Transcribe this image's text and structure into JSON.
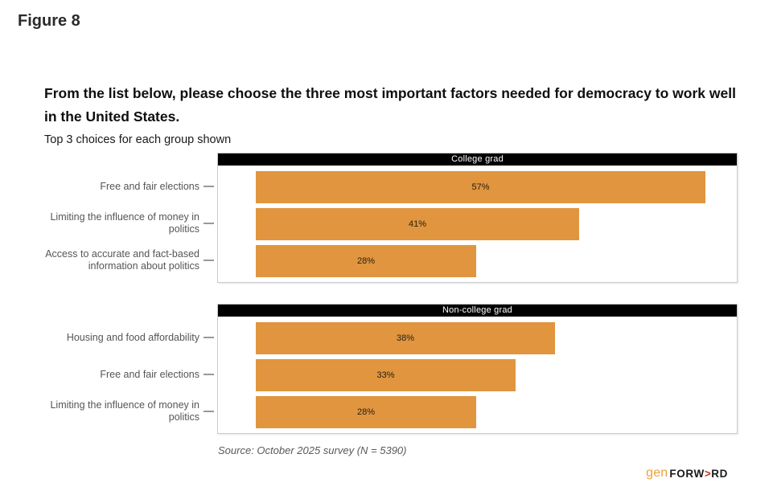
{
  "figure_label": "Figure 8",
  "title": "From the list below, please choose the three most important factors needed for democracy to work well in the United States.",
  "subtitle": "Top 3 choices for each group shown",
  "source_note": "Source: October 2025 survey (N = 5390)",
  "logo": {
    "gen": "gen",
    "forw": "FORW",
    "arrow": ">",
    "rd": "RD"
  },
  "colors": {
    "bar": "#E0953E",
    "panel_header_bg": "#000000",
    "panel_header_text": "#ffffff",
    "panel_border": "#cccccc",
    "tick": "#999999",
    "category_label": "#555555",
    "logo_gen": "#E8A23B",
    "logo_arrow": "#BE3A28"
  },
  "chart_data": [
    {
      "type": "bar",
      "orientation": "horizontal",
      "group": "College grad",
      "categories": [
        "Free and fair elections",
        "Limiting the influence of money in politics",
        "Access to accurate and fact-based information about politics"
      ],
      "values": [
        57,
        41,
        28
      ],
      "value_labels": [
        "57%",
        "41%",
        "28%"
      ],
      "xlim": [
        0,
        61
      ],
      "grid": false,
      "legend": false,
      "bar_color": "#E0953E"
    },
    {
      "type": "bar",
      "orientation": "horizontal",
      "group": "Non-college grad",
      "categories": [
        "Housing and food affordability",
        "Free and fair elections",
        "Limiting the influence of money in politics"
      ],
      "values": [
        38,
        33,
        28
      ],
      "value_labels": [
        "38%",
        "33%",
        "28%"
      ],
      "xlim": [
        0,
        61
      ],
      "grid": false,
      "legend": false,
      "bar_color": "#E0953E"
    }
  ]
}
